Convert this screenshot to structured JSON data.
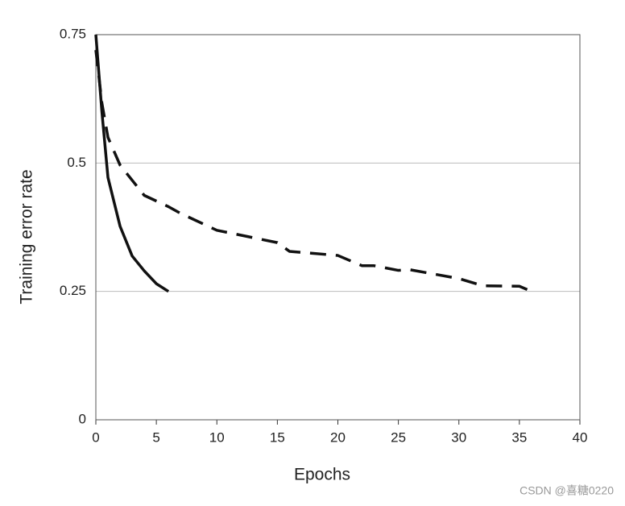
{
  "chart_data": {
    "type": "line",
    "x_label": "Epochs",
    "y_label": "Training error rate",
    "xlim": [
      0,
      40
    ],
    "xticks": [
      0,
      5,
      10,
      15,
      20,
      25,
      30,
      35,
      40
    ],
    "ylim": [
      0,
      0.75
    ],
    "yticks": [
      0,
      0.25,
      0.5,
      0.75
    ],
    "grid": true,
    "watermark": "CSDN @喜糖0220",
    "series": [
      {
        "color": "#111111",
        "style": "solid",
        "x": [
          0,
          0.5,
          1,
          2,
          3,
          4,
          5,
          6
        ],
        "values": [
          0.75,
          0.6,
          0.472,
          0.377,
          0.319,
          0.29,
          0.265,
          0.25
        ]
      },
      {
        "color": "#111111",
        "style": "dashed",
        "x": [
          0,
          0.5,
          1,
          2,
          4,
          6,
          7,
          10,
          15,
          16,
          20,
          21,
          22,
          23,
          25,
          26,
          30,
          32,
          35,
          36
        ],
        "values": [
          0.72,
          0.617,
          0.55,
          0.496,
          0.437,
          0.415,
          0.402,
          0.369,
          0.345,
          0.328,
          0.32,
          0.31,
          0.3,
          0.3,
          0.291,
          0.292,
          0.275,
          0.261,
          0.26,
          0.25
        ]
      }
    ]
  }
}
